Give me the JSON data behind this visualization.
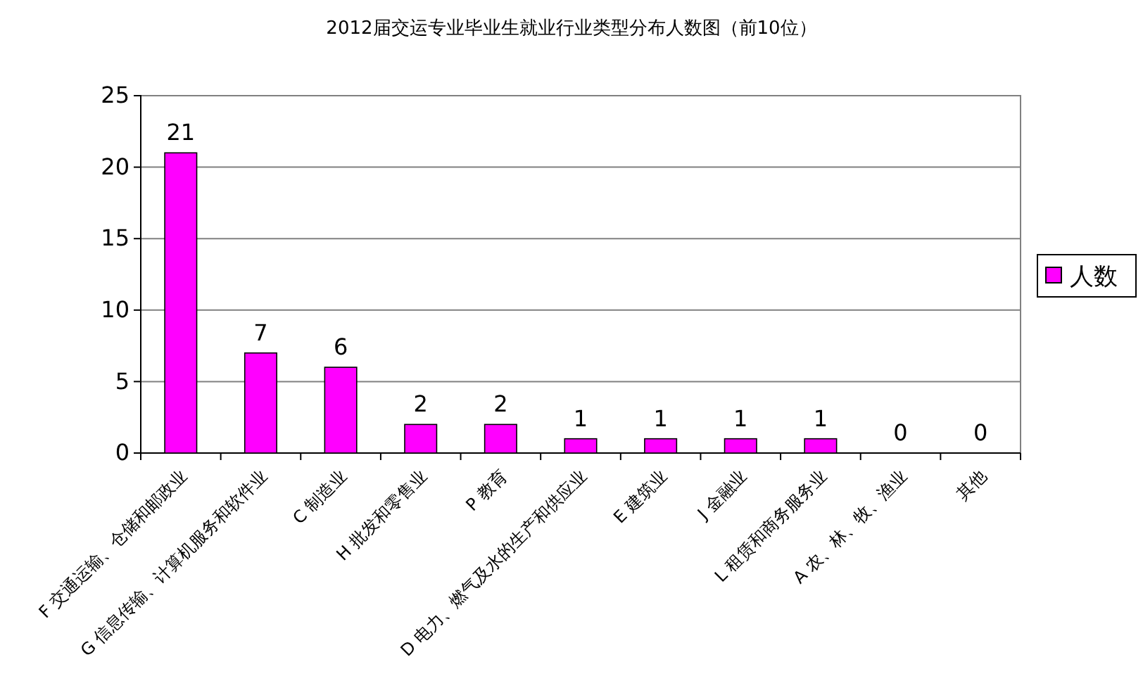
{
  "chart_data": {
    "type": "bar",
    "title": "2012届交运专业毕业生就业行业类型分布人数图（前10位）",
    "categories": [
      "F 交通运输、仓储和邮政业",
      "G 信息传输、计算机服务和软件业",
      "C 制造业",
      "H 批发和零售业",
      "P 教育",
      "D 电力、燃气及水的生产和供应业",
      "E 建筑业",
      "J 金融业",
      "L 租赁和商务服务业",
      "A 农、林、牧、渔业",
      "其他"
    ],
    "series": [
      {
        "name": "人数",
        "color": "#ff00ff",
        "values": [
          21,
          7,
          6,
          2,
          2,
          1,
          1,
          1,
          1,
          0,
          0
        ]
      }
    ],
    "ylim": [
      0,
      25
    ],
    "yticks": [
      0,
      5,
      10,
      15,
      20,
      25
    ],
    "grid": "y",
    "legend": "right",
    "data_labels": true
  }
}
